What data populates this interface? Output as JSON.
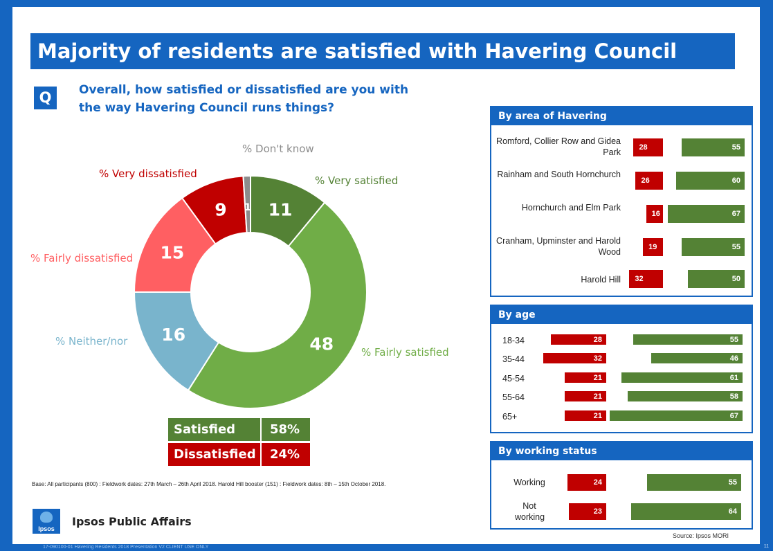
{
  "title": "Majority of residents are satisfied with Havering Council",
  "question_badge": "Q",
  "question": "Overall, how satisfied or dissatisfied are you with the way Havering Council runs things?",
  "chart_data": [
    {
      "type": "pie",
      "labels": [
        "% Very satisfied",
        "% Fairly satisfied",
        "% Neither/nor",
        "% Fairly dissatisfied",
        "% Very dissatisfied",
        "% Don't know"
      ],
      "values": [
        11,
        48,
        16,
        15,
        9,
        1
      ],
      "display_values": [
        "11",
        "48",
        "16",
        "15",
        "9",
        "1"
      ],
      "colors": [
        "#548235",
        "#70ad47",
        "#79b4cc",
        "#ff5f62",
        "#c00000",
        "#8c8c8c"
      ],
      "label_colors": [
        "#548235",
        "#70ad47",
        "#79b4cc",
        "#ff5f62",
        "#c00000",
        "#8c8c8c"
      ]
    },
    {
      "type": "bar",
      "title": "By area of Havering",
      "categories": [
        "Romford, Collier Row and Gidea Park",
        "Rainham and South Hornchurch",
        "Hornchurch and Elm Park",
        "Cranham, Upminster and Harold Wood",
        "Harold Hill"
      ],
      "series": [
        {
          "name": "Dissatisfied",
          "values": [
            28,
            26,
            16,
            19,
            32
          ],
          "color": "#c00000"
        },
        {
          "name": "Satisfied",
          "values": [
            55,
            60,
            67,
            55,
            50
          ],
          "color": "#548235"
        }
      ]
    },
    {
      "type": "bar",
      "title": "By age",
      "categories": [
        "18-34",
        "35-44",
        "45-54",
        "55-64",
        "65+"
      ],
      "series": [
        {
          "name": "Dissatisfied",
          "values": [
            28,
            32,
            21,
            21,
            21
          ],
          "color": "#c00000"
        },
        {
          "name": "Satisfied",
          "values": [
            55,
            46,
            61,
            58,
            67
          ],
          "color": "#548235"
        }
      ]
    },
    {
      "type": "bar",
      "title": "By working status",
      "categories": [
        "Working",
        "Not working"
      ],
      "series": [
        {
          "name": "Dissatisfied",
          "values": [
            24,
            23
          ],
          "color": "#c00000"
        },
        {
          "name": "Satisfied",
          "values": [
            55,
            64
          ],
          "color": "#548235"
        }
      ]
    }
  ],
  "summary": [
    {
      "label": "Satisfied",
      "value": "58%",
      "color": "#548235"
    },
    {
      "label": "Dissatisfied",
      "value": "24%",
      "color": "#c00000"
    }
  ],
  "base_note": "Base: All participants (800) : Fieldwork dates: 27th March – 26th April 2018. Harold Hill booster (151) : Fieldwork dates: 8th – 15th October 2018.",
  "logo_text": "Ipsos",
  "org_name": "Ipsos Public Affairs",
  "source": "Source: Ipsos MORI",
  "footer": "17-090100-01 Havering Residents 2018 Presentation V2 CLIENT USE ONLY",
  "page_number": "11",
  "brand_color": "#1565c0"
}
